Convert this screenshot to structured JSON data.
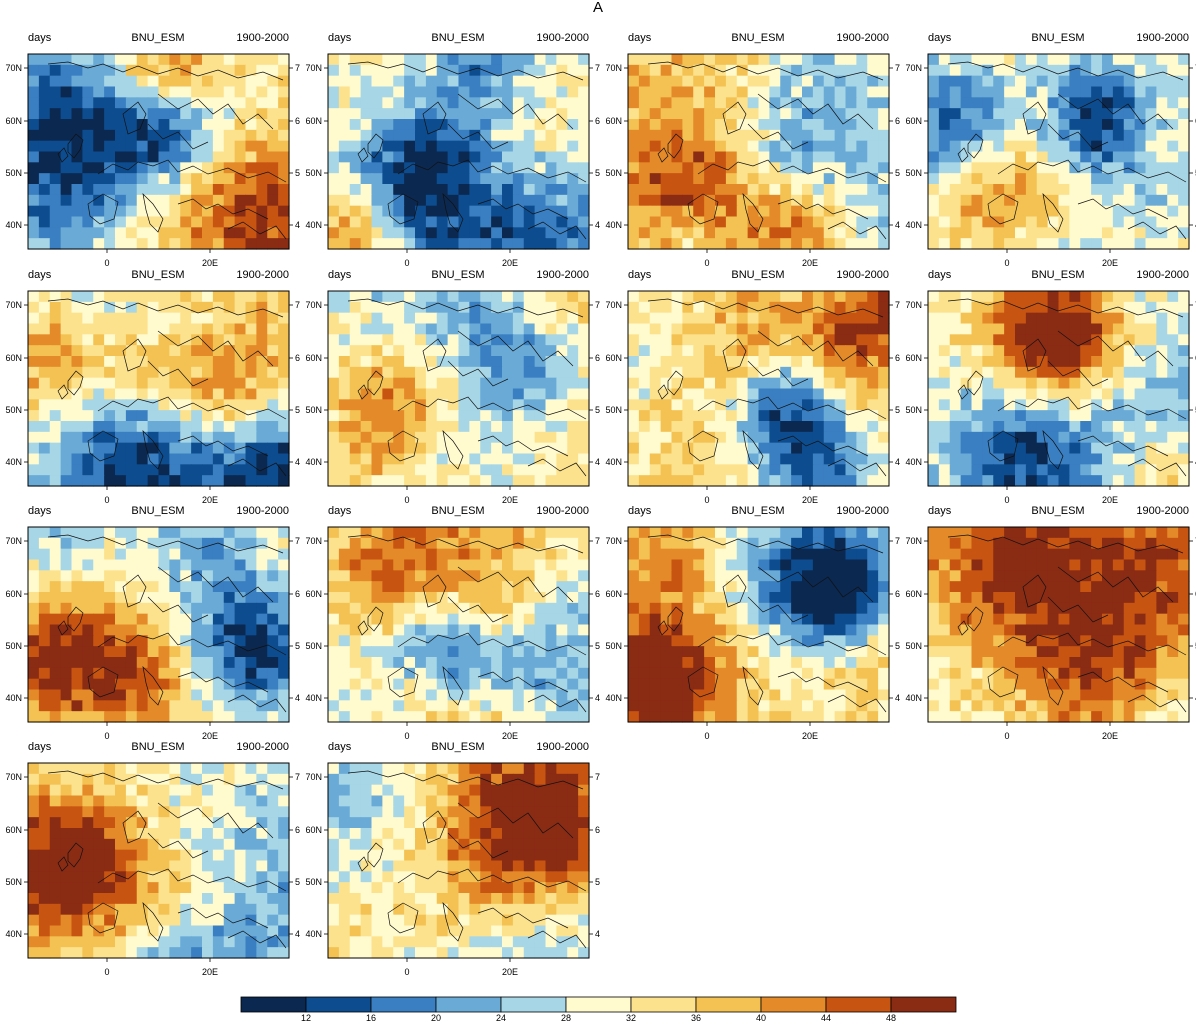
{
  "figure": {
    "title": "A"
  },
  "panel_labels": {
    "left": "days",
    "center": "BNU_ESM",
    "right": "1900-2000"
  },
  "panels": [
    {
      "id": 1
    },
    {
      "id": 2
    },
    {
      "id": 3
    },
    {
      "id": 4
    },
    {
      "id": 5
    },
    {
      "id": 6
    },
    {
      "id": 7
    },
    {
      "id": 8
    },
    {
      "id": 9
    },
    {
      "id": 10
    },
    {
      "id": 11
    },
    {
      "id": 12
    },
    {
      "id": 13
    },
    {
      "id": 14
    }
  ],
  "axes": {
    "y_ticks": [
      "40N",
      "50N",
      "60N",
      "70N"
    ],
    "x_ticks": [
      "0",
      "20E"
    ]
  },
  "colorbar": {
    "labels": [
      "12",
      "16",
      "20",
      "24",
      "28",
      "32",
      "36",
      "40",
      "44",
      "48"
    ],
    "colors": [
      "#0b2850",
      "#0d4d8f",
      "#3a7fc1",
      "#6aaad6",
      "#a7d6e6",
      "#fffbcf",
      "#fde28e",
      "#f3c252",
      "#e48a28",
      "#c85412",
      "#8a2b14"
    ]
  },
  "chart_data": {
    "type": "heatmap",
    "title": "A",
    "xlabel": "",
    "ylabel": "",
    "legend": "colorbar at bottom",
    "series": [
      {
        "name": "BNU_ESM",
        "values": []
      }
    ],
    "color_levels": [
      12,
      16,
      20,
      24,
      28,
      32,
      36,
      40,
      44,
      48
    ]
  }
}
